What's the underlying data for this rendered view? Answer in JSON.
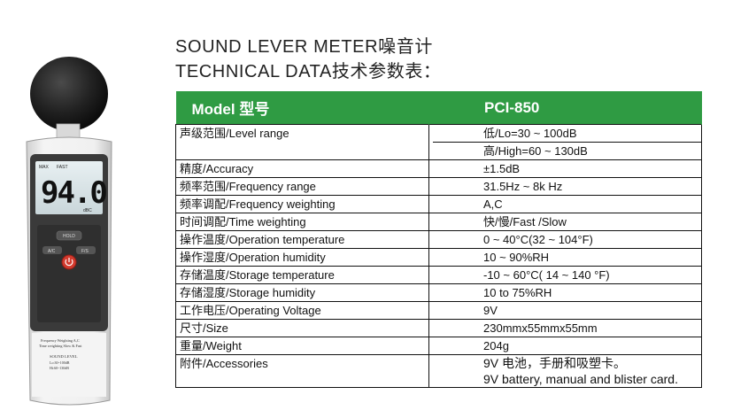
{
  "title_line1": "SOUND LEVER METER噪音计",
  "title_line2": "TECHNICAL DATA技术参数表：",
  "device": {
    "display_value": "94.0",
    "max_label": "MAX",
    "fast_label": "FAST",
    "unit_label": "dBC",
    "hold_label": "HOLD",
    "ac_label": "A/C",
    "fs_label": "F/S",
    "brand_line1": "Frequency Weighting A,C",
    "brand_line2": "Time weighting Slow & Fast",
    "brand_line3": "SOUND LEVEL",
    "brand_line4": "Lo:30~100dB",
    "brand_line5": "Hi:60~130dB"
  },
  "table": {
    "header_key": "Model 型号",
    "header_value": "PCI-850",
    "rows": [
      {
        "key": "声级范围/Level range",
        "value": "低/Lo=30 ~ 100dB",
        "value2": "高/High=60 ~ 130dB"
      },
      {
        "key": "精度/Accuracy",
        "value": "±1.5dB"
      },
      {
        "key": "频率范围/Frequency range",
        "value": "31.5Hz ~ 8k Hz"
      },
      {
        "key": "频率调配/Frequency weighting",
        "value": "A,C"
      },
      {
        "key": "时间调配/Time weighting",
        "value": "快/慢/Fast /Slow"
      },
      {
        "key": "操作温度/Operation temperature",
        "value": "0 ~ 40°C(32 ~ 104°F)"
      },
      {
        "key": "操作湿度/Operation humidity",
        "value": "10 ~ 90%RH"
      },
      {
        "key": "存储温度/Storage temperature",
        "value": "-10 ~ 60°C( 14 ~ 140 °F)"
      },
      {
        "key": "存储湿度/Storage humidity",
        "value": "10 to 75%RH"
      },
      {
        "key": "工作电压/Operating Voltage",
        "value": "9V"
      },
      {
        "key": "尺寸/Size",
        "value": "230mmx55mmx55mm"
      },
      {
        "key": "重量/Weight",
        "value": "204g"
      },
      {
        "key": "附件/Accessories",
        "value": "9V 电池，手册和吸塑卡。",
        "value2": "9V battery, manual and blister card."
      }
    ]
  }
}
